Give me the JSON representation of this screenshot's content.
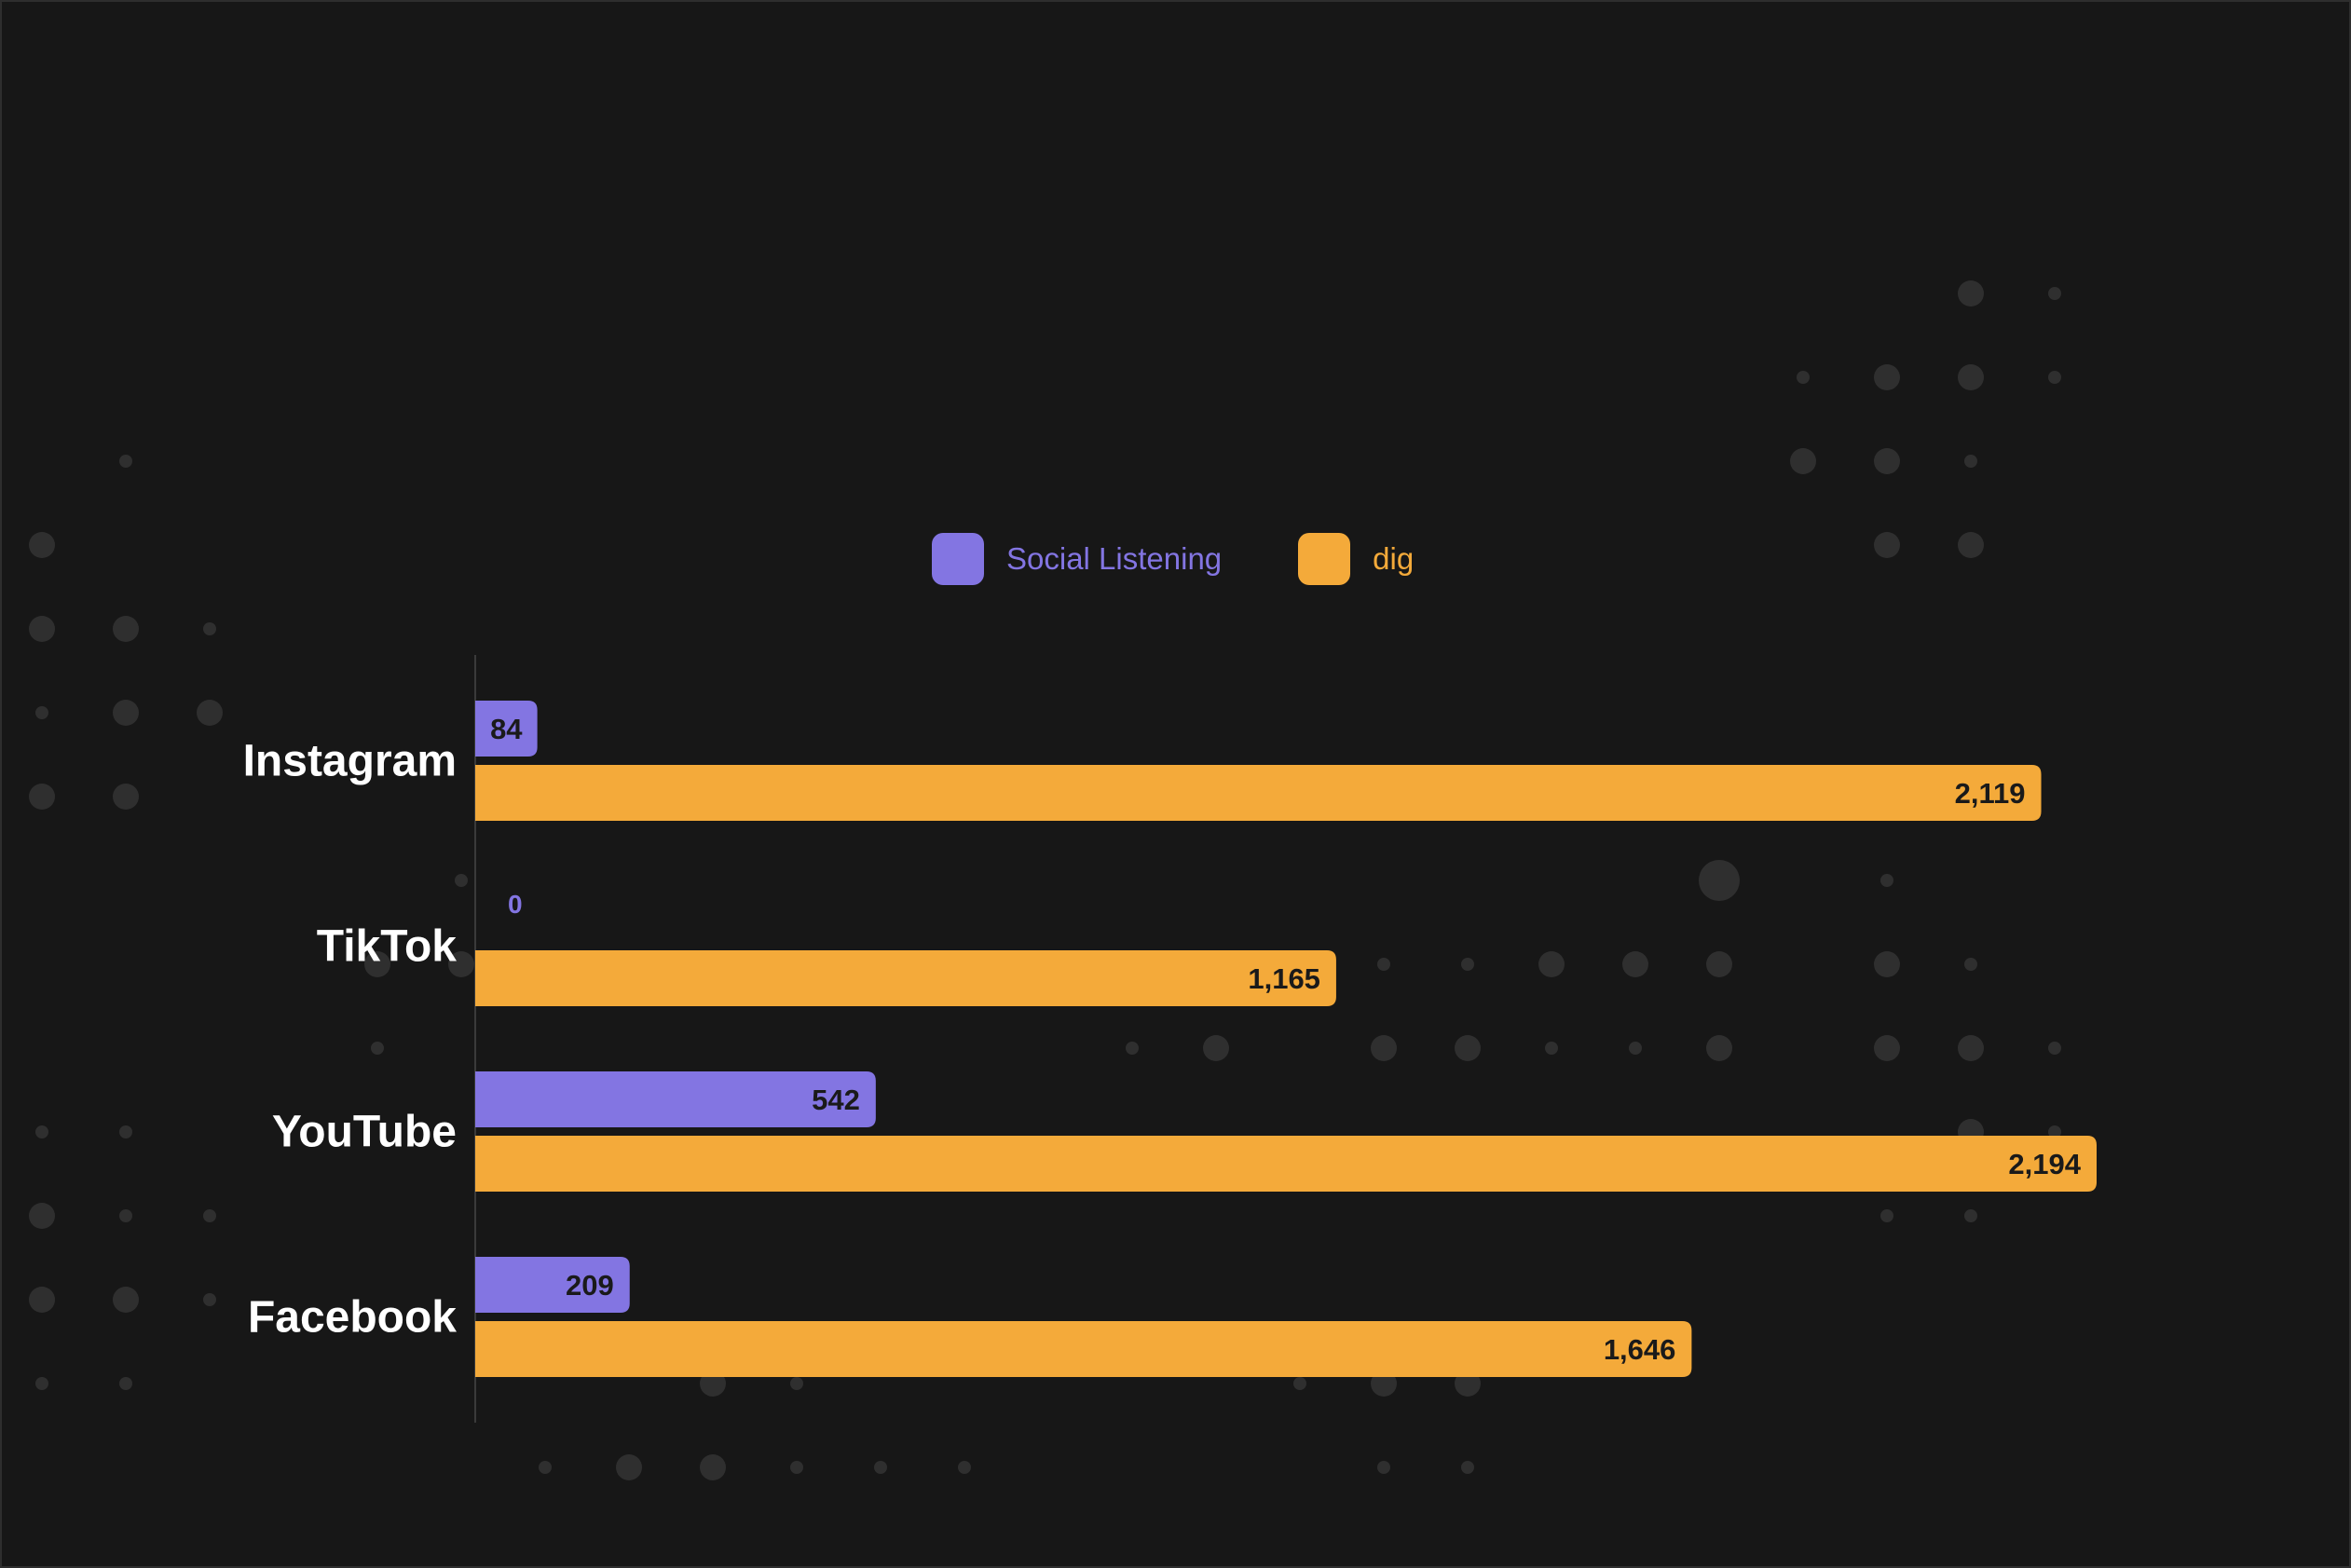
{
  "chart_data": {
    "type": "bar",
    "orientation": "horizontal",
    "categories": [
      "Instagram",
      "TikTok",
      "YouTube",
      "Facebook"
    ],
    "series": [
      {
        "name": "Social Listening",
        "values": [
          84,
          0,
          542,
          209
        ],
        "color": "#8375E2"
      },
      {
        "name": "dig",
        "values": [
          2119,
          1165,
          2194,
          1646
        ],
        "color": "#F4AA3A"
      }
    ],
    "value_labels": [
      [
        "84",
        "0",
        "542",
        "209"
      ],
      [
        "2,119",
        "1,165",
        "2,194",
        "1,646"
      ]
    ],
    "xlim": [
      0,
      2194
    ],
    "grid": false,
    "legend_position": "top-center"
  },
  "colors": {
    "background": "#171717",
    "text": "#ffffff",
    "axis": "#3a3a3a",
    "dots": "#2f2f2f",
    "value_text_dark": "#1a1a1a"
  }
}
